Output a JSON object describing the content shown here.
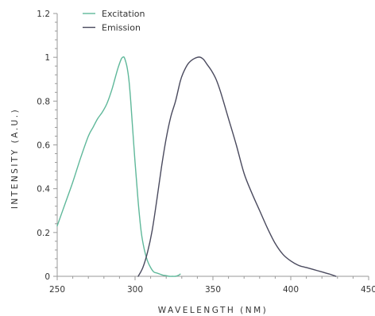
{
  "chart_data": {
    "type": "line",
    "xlabel": "WAVELENGTH (NM)",
    "ylabel": "INTENSITY (A.U.)",
    "xlim": [
      250,
      450
    ],
    "ylim": [
      0,
      1.2
    ],
    "x_ticks": [
      250,
      300,
      350,
      400,
      450
    ],
    "x_tick_labels": [
      "250",
      "300",
      "350",
      "400",
      "450"
    ],
    "y_ticks": [
      0,
      0.2,
      0.4,
      0.6,
      0.8,
      1,
      1.2
    ],
    "y_tick_labels": [
      "0",
      "0.2",
      "0.4",
      "0.6",
      "0.8",
      "1",
      "1.2"
    ],
    "grid": false,
    "legend_position": "top-left",
    "series": [
      {
        "name": "Excitation",
        "color": "#5fb89a",
        "x": [
          250,
          255,
          260,
          265,
          270,
          273,
          276,
          279,
          282,
          285,
          287,
          289,
          291,
          292,
          293,
          294,
          295,
          296,
          297,
          298,
          300,
          302,
          304,
          306,
          308,
          310,
          312,
          314,
          316,
          318,
          320,
          322,
          324,
          326,
          328,
          329
        ],
        "y": [
          0.23,
          0.33,
          0.43,
          0.54,
          0.64,
          0.68,
          0.72,
          0.75,
          0.79,
          0.85,
          0.9,
          0.95,
          0.99,
          1.0,
          1.0,
          0.98,
          0.95,
          0.9,
          0.82,
          0.72,
          0.52,
          0.34,
          0.2,
          0.12,
          0.07,
          0.04,
          0.02,
          0.015,
          0.01,
          0.005,
          0.003,
          0.0,
          0.0,
          0.0,
          0.005,
          0.01
        ]
      },
      {
        "name": "Emission",
        "color": "#4a4a5e",
        "x": [
          302,
          305,
          308,
          311,
          314,
          317,
          320,
          323,
          326,
          329,
          331,
          334,
          337,
          340,
          342,
          344,
          346,
          349,
          352,
          355,
          360,
          365,
          370,
          375,
          380,
          385,
          390,
          395,
          400,
          405,
          410,
          415,
          420,
          425,
          429
        ],
        "y": [
          0.0,
          0.04,
          0.11,
          0.21,
          0.35,
          0.5,
          0.63,
          0.73,
          0.8,
          0.89,
          0.93,
          0.97,
          0.99,
          1.0,
          1.0,
          0.99,
          0.97,
          0.94,
          0.9,
          0.84,
          0.72,
          0.6,
          0.47,
          0.38,
          0.3,
          0.22,
          0.15,
          0.1,
          0.07,
          0.05,
          0.04,
          0.03,
          0.02,
          0.01,
          0.0
        ]
      }
    ]
  }
}
